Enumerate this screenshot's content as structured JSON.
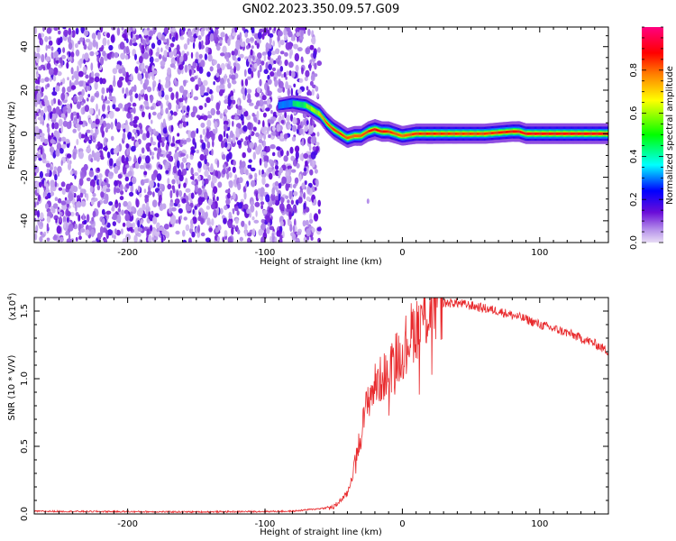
{
  "title": "GN02.2023.350.09.57.G09",
  "chart_data": [
    {
      "type": "heatmap",
      "xlabel": "Height of straight line (km)",
      "ylabel": "Frequency (Hz)",
      "xlim": [
        -268,
        150
      ],
      "ylim": [
        -50,
        49
      ],
      "x_ticks": [
        -200,
        -100,
        0,
        100
      ],
      "y_ticks": [
        -40,
        -20,
        0,
        20,
        40
      ],
      "colorbar": {
        "label": "Normalized spectral amplitude",
        "range": [
          0,
          1
        ],
        "ticks": [
          0.0,
          0.2,
          0.4,
          0.6,
          0.8
        ],
        "tick_labels": [
          "0.0",
          "0.2",
          "0.4",
          "0.6",
          "0.8"
        ],
        "colors": [
          "#e8dcf5",
          "#6a0dd8",
          "#0000ff",
          "#00ffff",
          "#00ff00",
          "#ffff00",
          "#ff8000",
          "#ff0000",
          "#ff0080"
        ]
      },
      "noise_region": {
        "x": [
          -268,
          -63
        ],
        "y": [
          -50,
          49
        ]
      },
      "ridge": {
        "x": [
          -90,
          -80,
          -70,
          -60,
          -55,
          -50,
          -45,
          -40,
          -35,
          -30,
          -25,
          -20,
          -15,
          -10,
          -5,
          0,
          10,
          20,
          40,
          60,
          80,
          85,
          90,
          100,
          120,
          150
        ],
        "y": [
          13,
          14,
          13,
          9,
          5,
          2,
          0,
          -2,
          -1,
          -1,
          1,
          2,
          1,
          1,
          0,
          -1,
          0,
          0,
          0,
          0,
          1,
          1,
          0,
          0,
          0,
          0
        ],
        "amp": [
          0.3,
          0.45,
          0.6,
          0.75,
          0.82,
          0.85,
          0.85,
          0.82,
          0.8,
          0.82,
          0.85,
          0.88,
          0.88,
          0.86,
          0.82,
          0.8,
          0.85,
          0.86,
          0.84,
          0.84,
          0.88,
          0.9,
          0.9,
          0.9,
          0.9,
          0.9
        ]
      },
      "spot": {
        "x": -25,
        "y": -31
      }
    },
    {
      "type": "line",
      "xlabel": "Height of straight line (km)",
      "ylabel": "SNR (10 * V/V)",
      "y_multiplier": "(x10",
      "y_multiplier_exp": "4",
      "y_multiplier_close": ")",
      "xlim": [
        -268,
        150
      ],
      "ylim": [
        0,
        1.6
      ],
      "x_ticks": [
        -200,
        -100,
        0,
        100
      ],
      "y_ticks": [
        0.0,
        0.5,
        1.0,
        1.5
      ],
      "y_tick_labels": [
        "0.0",
        "0.5",
        "1.0",
        "1.5"
      ],
      "color": "#e8292c",
      "series": [
        {
          "x": [
            -268,
            -150,
            -80,
            -50,
            -40,
            -35,
            -30,
            -25,
            -20,
            -15,
            -10,
            -5,
            0,
            5,
            10,
            15,
            20,
            25,
            30,
            40,
            50,
            60,
            70,
            80,
            90,
            100,
            110,
            120,
            130,
            140,
            150
          ],
          "y": [
            0.02,
            0.015,
            0.02,
            0.05,
            0.15,
            0.35,
            0.6,
            0.85,
            0.95,
            1.0,
            1.05,
            1.15,
            1.2,
            1.32,
            1.38,
            1.45,
            1.5,
            1.54,
            1.56,
            1.56,
            1.54,
            1.52,
            1.5,
            1.47,
            1.44,
            1.4,
            1.37,
            1.34,
            1.3,
            1.26,
            1.2
          ]
        }
      ]
    }
  ]
}
